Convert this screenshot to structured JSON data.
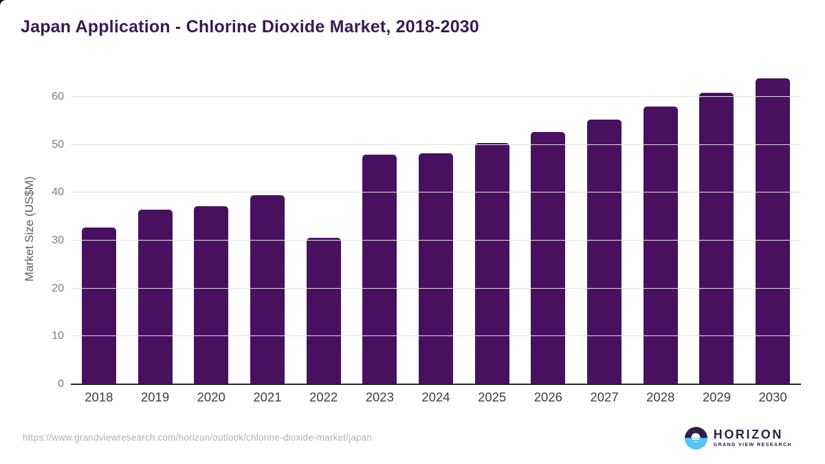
{
  "page": {
    "title": "Japan Application - Chlorine Dioxide Market, 2018-2030"
  },
  "chart_data": {
    "type": "bar",
    "title": "Japan Application - Chlorine Dioxide Market, 2018-2030",
    "categories": [
      "2018",
      "2019",
      "2020",
      "2021",
      "2022",
      "2023",
      "2024",
      "2025",
      "2026",
      "2027",
      "2028",
      "2029",
      "2030"
    ],
    "values": [
      32.7,
      36.4,
      37.1,
      39.4,
      30.5,
      47.9,
      48.2,
      50.4,
      52.7,
      55.2,
      57.9,
      60.8,
      63.9
    ],
    "xlabel": "",
    "ylabel": "Market Size (US$M)",
    "ylim": [
      0,
      65
    ],
    "yticks": [
      0,
      10,
      20,
      30,
      40,
      50,
      60
    ],
    "grid": true,
    "legend": "none",
    "bar_color": "#4a1060",
    "title_color": "#3a1a52",
    "gridline_color": "#e4e4e4",
    "axis_line_color": "#212121"
  },
  "footer": {
    "source_url": "https://www.grandviewresearch.com/horizon/outlook/chlorine-dioxide-market/japan",
    "logo": {
      "name": "HORIZON",
      "subtitle": "GRAND VIEW RESEARCH",
      "purple": "#2e2145",
      "blue": "#56c5f0"
    }
  }
}
